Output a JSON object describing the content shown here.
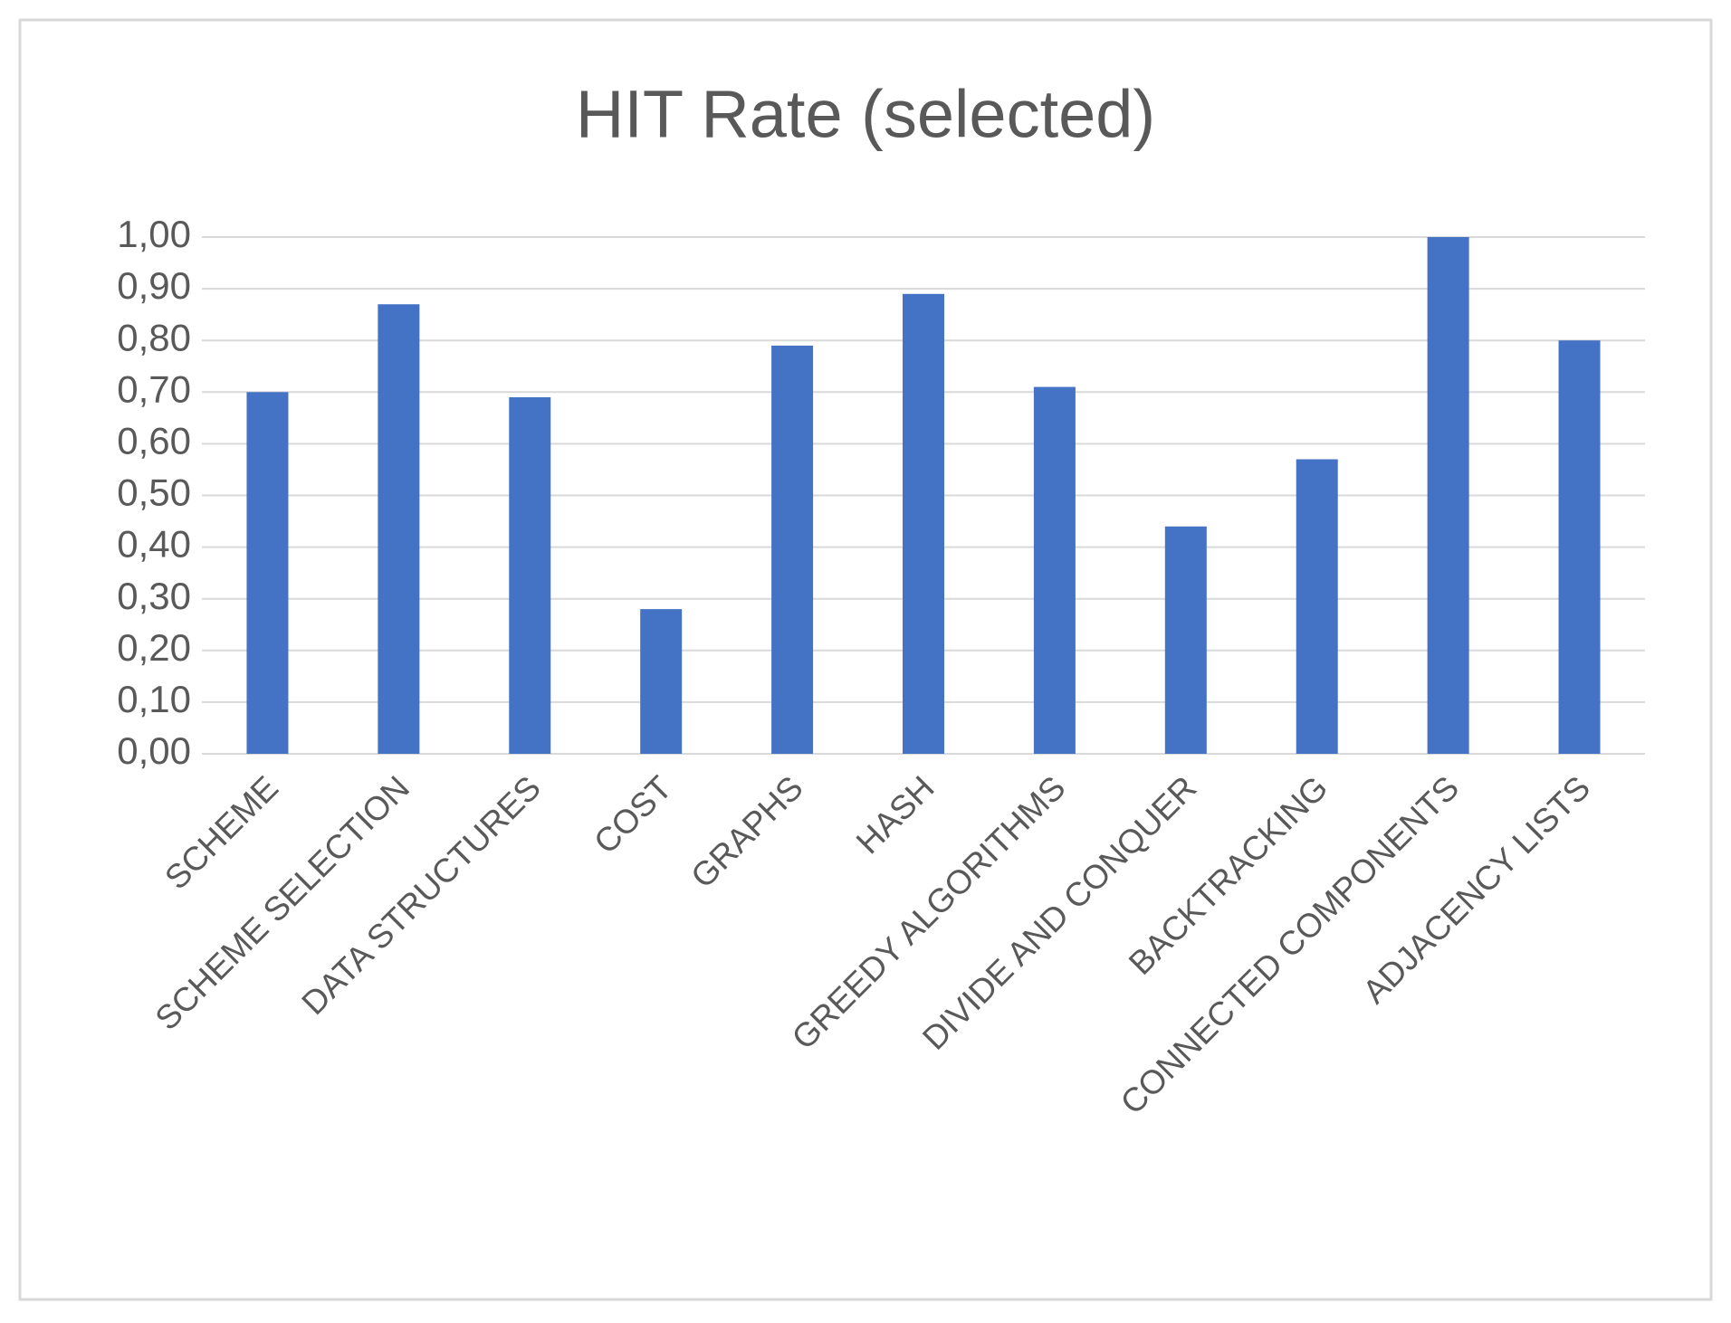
{
  "chart_data": {
    "type": "bar",
    "title": "HIT Rate (selected)",
    "categories": [
      "SCHEME",
      "SCHEME SELECTION",
      "DATA STRUCTURES",
      "COST",
      "GRAPHS",
      "HASH",
      "GREEDY ALGORITHMS",
      "DIVIDE AND CONQUER",
      "BACKTRACKING",
      "CONNECTED COMPONENTS",
      "ADJACENCY LISTS"
    ],
    "values": [
      0.7,
      0.87,
      0.69,
      0.28,
      0.79,
      0.89,
      0.71,
      0.44,
      0.57,
      1.0,
      0.8
    ],
    "color": "#4472c4",
    "ylim": [
      0,
      1
    ],
    "yticks": [
      {
        "value": 0,
        "label": "0,00"
      },
      {
        "value": 0.1,
        "label": "0,10"
      },
      {
        "value": 0.2,
        "label": "0,20"
      },
      {
        "value": 0.3,
        "label": "0,30"
      },
      {
        "value": 0.4,
        "label": "0,40"
      },
      {
        "value": 0.5,
        "label": "0,50"
      },
      {
        "value": 0.6,
        "label": "0,60"
      },
      {
        "value": 0.7,
        "label": "0,70"
      },
      {
        "value": 0.8,
        "label": "0,80"
      },
      {
        "value": 0.9,
        "label": "0,90"
      },
      {
        "value": 1,
        "label": "1,00"
      }
    ],
    "grid": true
  }
}
